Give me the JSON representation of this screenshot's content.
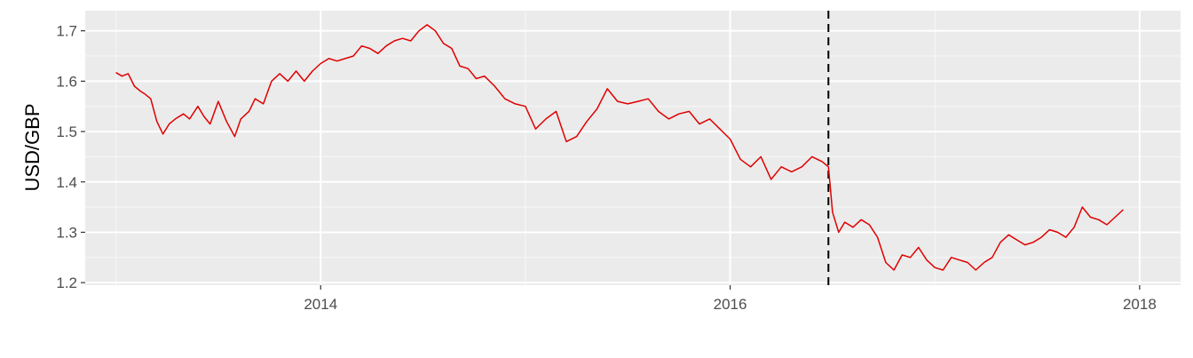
{
  "chart_data": {
    "type": "line",
    "title": "",
    "xlabel": "",
    "ylabel": "USD/GBP",
    "xlim": [
      2012.85,
      2018.2
    ],
    "ylim": [
      1.195,
      1.74
    ],
    "x_ticks": [
      2014,
      2016,
      2018
    ],
    "x_tick_labels": [
      "2014",
      "2016",
      "2018"
    ],
    "y_ticks": [
      1.2,
      1.3,
      1.4,
      1.5,
      1.6,
      1.7
    ],
    "y_tick_labels": [
      "1.2",
      "1.3",
      "1.4",
      "1.5",
      "1.6",
      "1.7"
    ],
    "grid": true,
    "legend": "none",
    "colors": {
      "line": "#e00000",
      "panel": "#ebebeb",
      "grid_major": "#ffffff",
      "vline": "#000000"
    },
    "reference_line": {
      "x": 2016.48,
      "style": "dashed"
    },
    "series": [
      {
        "x": [
          2013.0,
          2013.03,
          2013.06,
          2013.09,
          2013.12,
          2013.14,
          2013.17,
          2013.2,
          2013.23,
          2013.26,
          2013.29,
          2013.33,
          2013.36,
          2013.4,
          2013.43,
          2013.46,
          2013.5,
          2013.54,
          2013.58,
          2013.61,
          2013.65,
          2013.68,
          2013.72,
          2013.76,
          2013.8,
          2013.84,
          2013.88,
          2013.92,
          2013.96,
          2014.0,
          2014.04,
          2014.08,
          2014.12,
          2014.16,
          2014.2,
          2014.24,
          2014.28,
          2014.32,
          2014.36,
          2014.4,
          2014.44,
          2014.48,
          2014.52,
          2014.56,
          2014.6,
          2014.64,
          2014.68,
          2014.72,
          2014.76,
          2014.8,
          2014.85,
          2014.9,
          2014.95,
          2015.0,
          2015.05,
          2015.1,
          2015.15,
          2015.2,
          2015.25,
          2015.3,
          2015.35,
          2015.4,
          2015.45,
          2015.5,
          2015.55,
          2015.6,
          2015.65,
          2015.7,
          2015.75,
          2015.8,
          2015.85,
          2015.9,
          2015.95,
          2016.0,
          2016.05,
          2016.1,
          2016.15,
          2016.2,
          2016.25,
          2016.3,
          2016.35,
          2016.4,
          2016.45,
          2016.48,
          2016.5,
          2016.53,
          2016.56,
          2016.6,
          2016.64,
          2016.68,
          2016.72,
          2016.76,
          2016.8,
          2016.84,
          2016.88,
          2016.92,
          2016.96,
          2017.0,
          2017.04,
          2017.08,
          2017.12,
          2017.16,
          2017.2,
          2017.24,
          2017.28,
          2017.32,
          2017.36,
          2017.4,
          2017.44,
          2017.48,
          2017.52,
          2017.56,
          2017.6,
          2017.64,
          2017.68,
          2017.72,
          2017.76,
          2017.8,
          2017.84,
          2017.88,
          2017.92
        ],
        "y": [
          1.617,
          1.61,
          1.615,
          1.59,
          1.58,
          1.575,
          1.565,
          1.52,
          1.495,
          1.515,
          1.525,
          1.535,
          1.525,
          1.55,
          1.53,
          1.515,
          1.56,
          1.52,
          1.49,
          1.525,
          1.54,
          1.565,
          1.555,
          1.6,
          1.615,
          1.6,
          1.62,
          1.6,
          1.62,
          1.635,
          1.645,
          1.64,
          1.645,
          1.65,
          1.67,
          1.665,
          1.655,
          1.67,
          1.68,
          1.685,
          1.68,
          1.7,
          1.712,
          1.7,
          1.675,
          1.665,
          1.63,
          1.625,
          1.605,
          1.61,
          1.59,
          1.565,
          1.555,
          1.55,
          1.505,
          1.525,
          1.54,
          1.48,
          1.49,
          1.52,
          1.545,
          1.585,
          1.56,
          1.555,
          1.56,
          1.565,
          1.54,
          1.525,
          1.535,
          1.54,
          1.515,
          1.525,
          1.505,
          1.485,
          1.445,
          1.43,
          1.45,
          1.405,
          1.43,
          1.42,
          1.43,
          1.45,
          1.44,
          1.43,
          1.34,
          1.3,
          1.32,
          1.31,
          1.325,
          1.315,
          1.29,
          1.24,
          1.225,
          1.255,
          1.25,
          1.27,
          1.245,
          1.23,
          1.225,
          1.25,
          1.245,
          1.24,
          1.225,
          1.24,
          1.25,
          1.28,
          1.295,
          1.285,
          1.275,
          1.28,
          1.29,
          1.305,
          1.3,
          1.29,
          1.31,
          1.35,
          1.33,
          1.325,
          1.315,
          1.33,
          1.345
        ]
      }
    ]
  }
}
